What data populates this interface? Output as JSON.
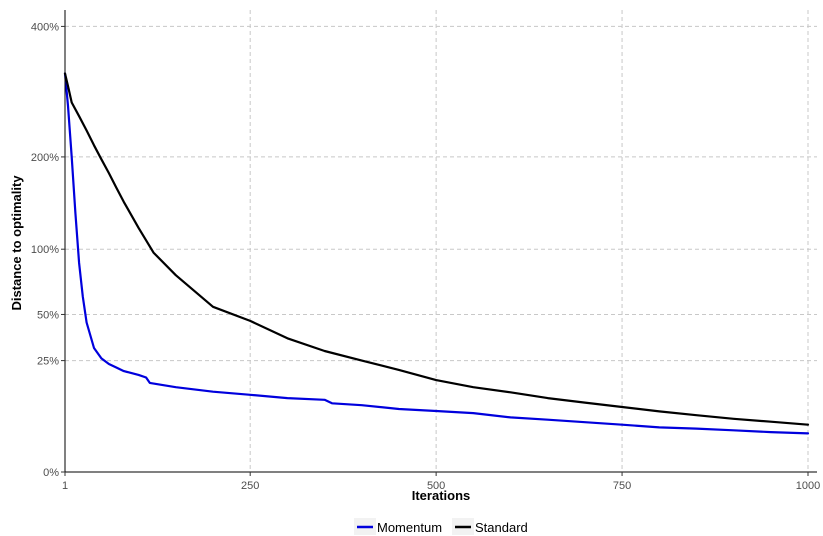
{
  "chart_data": {
    "type": "line",
    "title": "",
    "xlabel": "Iterations",
    "ylabel": "Distance to optimality",
    "xlim": [
      1,
      1000
    ],
    "ylim": [
      0,
      4.3
    ],
    "y_scale": "sqrt",
    "grid": true,
    "legend_position": "bottom",
    "x_ticks": [
      1,
      250,
      500,
      750,
      1000
    ],
    "x_tick_labels": [
      "1",
      "250",
      "500",
      "750",
      "1000"
    ],
    "y_ticks": [
      0,
      0.25,
      0.5,
      1,
      2,
      4
    ],
    "y_tick_labels": [
      "0%",
      "25%",
      "50%",
      "100%",
      "200%",
      "400%"
    ],
    "series": [
      {
        "name": "Momentum",
        "color": "#0000dd",
        "x": [
          1,
          5,
          10,
          15,
          20,
          25,
          30,
          40,
          50,
          60,
          70,
          80,
          100,
          110,
          115,
          150,
          200,
          250,
          300,
          350,
          360,
          400,
          450,
          500,
          550,
          600,
          650,
          700,
          750,
          800,
          850,
          900,
          950,
          1000
        ],
        "y": [
          3.2,
          2.7,
          2.0,
          1.35,
          0.88,
          0.62,
          0.45,
          0.31,
          0.26,
          0.235,
          0.22,
          0.205,
          0.19,
          0.18,
          0.16,
          0.145,
          0.13,
          0.12,
          0.11,
          0.105,
          0.095,
          0.09,
          0.08,
          0.075,
          0.07,
          0.06,
          0.055,
          0.05,
          0.045,
          0.04,
          0.038,
          0.035,
          0.032,
          0.03
        ]
      },
      {
        "name": "Standard",
        "color": "#000000",
        "x": [
          1,
          5,
          10,
          20,
          30,
          40,
          50,
          60,
          70,
          80,
          100,
          120,
          150,
          200,
          250,
          300,
          350,
          400,
          450,
          500,
          550,
          600,
          650,
          700,
          750,
          800,
          850,
          900,
          950,
          1000
        ],
        "y": [
          3.2,
          3.0,
          2.75,
          2.55,
          2.35,
          2.15,
          1.97,
          1.8,
          1.63,
          1.47,
          1.2,
          0.97,
          0.78,
          0.55,
          0.46,
          0.36,
          0.295,
          0.25,
          0.21,
          0.17,
          0.145,
          0.128,
          0.11,
          0.097,
          0.085,
          0.074,
          0.065,
          0.057,
          0.051,
          0.045
        ]
      }
    ]
  }
}
